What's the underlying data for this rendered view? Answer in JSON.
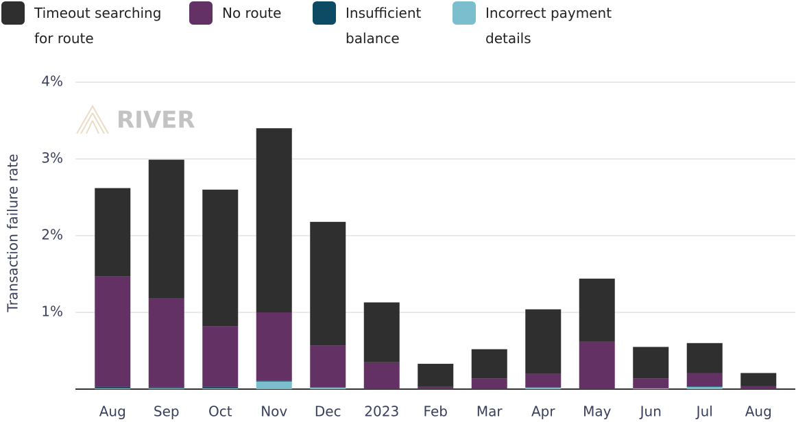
{
  "chart_data": {
    "type": "stacked_bar",
    "y_label": "Transaction failure rate",
    "watermark": "RIVER",
    "categories": [
      "Aug",
      "Sep",
      "Oct",
      "Nov",
      "Dec",
      "2023",
      "Feb",
      "Mar",
      "Apr",
      "May",
      "Jun",
      "Jul",
      "Aug"
    ],
    "series": [
      {
        "name": "Incorrect payment details",
        "color": "#7bbfcf",
        "values": [
          0.01,
          0.01,
          0.01,
          0.1,
          0.02,
          0,
          0,
          0,
          0.02,
          0,
          0.01,
          0.03,
          0
        ]
      },
      {
        "name": "Insufficient balance",
        "color": "#0d4a63",
        "values": [
          0.02,
          0.01,
          0.02,
          0.01,
          0,
          0,
          0,
          0,
          0,
          0,
          0,
          0.01,
          0
        ]
      },
      {
        "name": "No route",
        "color": "#633163",
        "values": [
          1.44,
          1.16,
          0.79,
          0.89,
          0.55,
          0.35,
          0.03,
          0.14,
          0.18,
          0.62,
          0.13,
          0.17,
          0.04
        ]
      },
      {
        "name": "Timeout searching for route",
        "color": "#2f2f2f",
        "values": [
          1.15,
          1.81,
          1.78,
          2.4,
          1.61,
          0.78,
          0.3,
          0.38,
          0.84,
          0.82,
          0.41,
          0.39,
          0.17
        ]
      }
    ],
    "ylim": [
      0,
      4
    ],
    "yticks": [
      {
        "value": 1,
        "label": "1%"
      },
      {
        "value": 2,
        "label": "2%"
      },
      {
        "value": 3,
        "label": "3%"
      },
      {
        "value": 4,
        "label": "4%"
      }
    ],
    "grid": true
  }
}
